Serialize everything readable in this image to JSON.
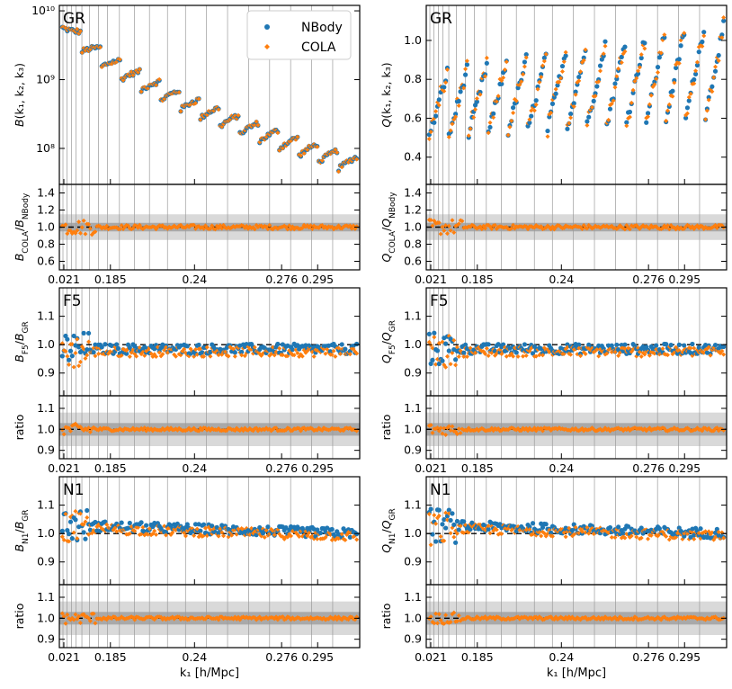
{
  "figure": {
    "xlabel": "k₁ [h/Mpc]",
    "xtick_labels": [
      "0.021",
      "0.185",
      "0.24",
      "0.276",
      "0.295"
    ],
    "legend": {
      "placement": "top-right",
      "entries": [
        "NBody",
        "COLA"
      ]
    },
    "colors": {
      "nbody": "#1f77b4",
      "cola": "#ff7f0e",
      "band_inner": "#a9a9a9",
      "band_outer": "#d9d9d9",
      "reference": "#000000"
    }
  },
  "chart_data": [
    {
      "id": "B-GR",
      "type": "scatter",
      "label": "GR",
      "ylabel": "B(k₁, k₂, k₃)",
      "yscale": "log",
      "ylim": [
        30000000,
        12000000000
      ],
      "yticks": [
        100000000,
        1000000000,
        10000000000
      ],
      "ytick_labels": [
        "10⁸",
        "10⁹",
        "10¹⁰"
      ],
      "series": [
        {
          "name": "NBody"
        },
        {
          "name": "COLA"
        }
      ]
    },
    {
      "id": "B-GR-ratio",
      "type": "scatter",
      "ylabel": "B_COLA/B_NBody",
      "ylim": [
        0.5,
        1.5
      ],
      "yticks": [
        0.6,
        0.8,
        1.0,
        1.2,
        1.4
      ],
      "ytick_labels": [
        "0.6",
        "0.8",
        "1.0",
        "1.2",
        "1.4"
      ],
      "bands": [
        0.05,
        0.15
      ],
      "reference": 1.0
    },
    {
      "id": "Q-GR",
      "type": "scatter",
      "label": "GR",
      "ylabel": "Q(k₁, k₂, k₃)",
      "ylim": [
        0.26,
        1.18
      ],
      "yticks": [
        0.4,
        0.6,
        0.8,
        1.0
      ],
      "ytick_labels": [
        "0.4",
        "0.6",
        "0.8",
        "1.0"
      ]
    },
    {
      "id": "Q-GR-ratio",
      "type": "scatter",
      "ylabel": "Q_COLA/Q_NBody",
      "ylim": [
        0.5,
        1.5
      ],
      "yticks": [
        0.6,
        0.8,
        1.0,
        1.2,
        1.4
      ],
      "ytick_labels": [
        "0.6",
        "0.8",
        "1.0",
        "1.2",
        "1.4"
      ],
      "bands": [
        0.05,
        0.15
      ],
      "reference": 1.0
    },
    {
      "id": "B-F5",
      "type": "scatter",
      "label": "F5",
      "ylabel": "B_F5/B_GR",
      "ylim": [
        0.82,
        1.2
      ],
      "yticks": [
        0.9,
        1.0,
        1.1
      ],
      "ytick_labels": [
        "0.9",
        "1.0",
        "1.1"
      ],
      "reference": 1.0
    },
    {
      "id": "B-F5-ratio",
      "type": "scatter",
      "ylabel": "ratio",
      "ylim": [
        0.86,
        1.16
      ],
      "yticks": [
        0.9,
        1.0,
        1.1
      ],
      "ytick_labels": [
        "0.9",
        "1.0",
        "1.1"
      ],
      "bands": [
        0.03,
        0.08
      ],
      "reference": 1.0
    },
    {
      "id": "Q-F5",
      "type": "scatter",
      "label": "F5",
      "ylabel": "Q_F5/Q_GR",
      "ylim": [
        0.82,
        1.2
      ],
      "yticks": [
        0.9,
        1.0,
        1.1
      ],
      "ytick_labels": [
        "0.9",
        "1.0",
        "1.1"
      ],
      "reference": 1.0
    },
    {
      "id": "Q-F5-ratio",
      "type": "scatter",
      "ylabel": "ratio",
      "ylim": [
        0.86,
        1.16
      ],
      "yticks": [
        0.9,
        1.0,
        1.1
      ],
      "ytick_labels": [
        "0.9",
        "1.0",
        "1.1"
      ],
      "bands": [
        0.03,
        0.08
      ],
      "reference": 1.0
    },
    {
      "id": "B-N1",
      "type": "scatter",
      "label": "N1",
      "ylabel": "B_N1/B_GR",
      "ylim": [
        0.82,
        1.2
      ],
      "yticks": [
        0.9,
        1.0,
        1.1
      ],
      "ytick_labels": [
        "0.9",
        "1.0",
        "1.1"
      ],
      "reference": 1.0
    },
    {
      "id": "B-N1-ratio",
      "type": "scatter",
      "ylabel": "ratio",
      "ylim": [
        0.86,
        1.16
      ],
      "yticks": [
        0.9,
        1.0,
        1.1
      ],
      "ytick_labels": [
        "0.9",
        "1.0",
        "1.1"
      ],
      "bands": [
        0.03,
        0.08
      ],
      "reference": 1.0
    },
    {
      "id": "Q-N1",
      "type": "scatter",
      "label": "N1",
      "ylabel": "Q_N1/Q_GR",
      "ylim": [
        0.82,
        1.2
      ],
      "yticks": [
        0.9,
        1.0,
        1.1
      ],
      "ytick_labels": [
        "0.9",
        "1.0",
        "1.1"
      ],
      "reference": 1.0
    },
    {
      "id": "Q-N1-ratio",
      "type": "scatter",
      "ylabel": "ratio",
      "ylim": [
        0.86,
        1.16
      ],
      "yticks": [
        0.9,
        1.0,
        1.1
      ],
      "ytick_labels": [
        "0.9",
        "1.0",
        "1.1"
      ],
      "bands": [
        0.03,
        0.08
      ],
      "reference": 1.0
    }
  ]
}
